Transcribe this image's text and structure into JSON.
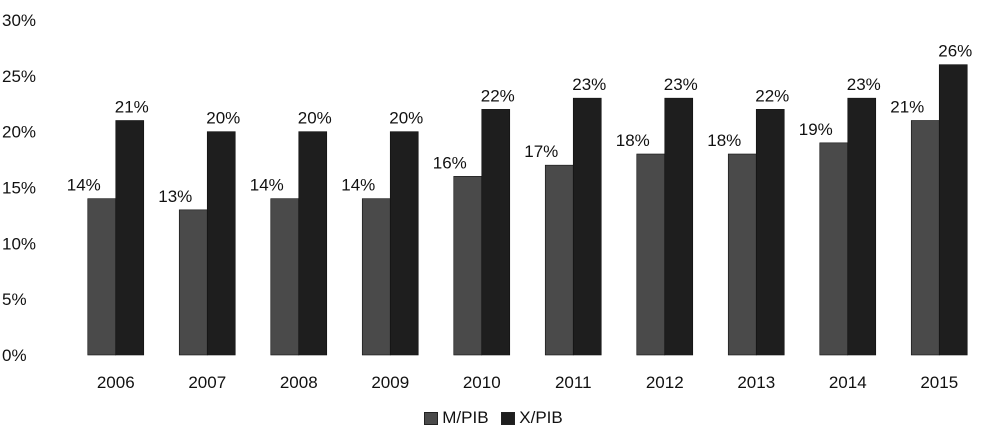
{
  "chart_data": {
    "type": "bar",
    "categories": [
      "2006",
      "2007",
      "2008",
      "2009",
      "2010",
      "2011",
      "2012",
      "2013",
      "2014",
      "2015"
    ],
    "series": [
      {
        "name": "M/PIB",
        "values": [
          14,
          13,
          14,
          14,
          16,
          17,
          18,
          18,
          19,
          21
        ],
        "labels": [
          "14%",
          "13%",
          "14%",
          "14%",
          "16%",
          "17%",
          "18%",
          "18%",
          "19%",
          "21%"
        ],
        "color": "#4a4a4a"
      },
      {
        "name": "X/PIB",
        "values": [
          21,
          20,
          20,
          20,
          22,
          23,
          23,
          22,
          23,
          26
        ],
        "labels": [
          "21%",
          "20%",
          "20%",
          "20%",
          "22%",
          "23%",
          "23%",
          "22%",
          "23%",
          "26%"
        ],
        "color": "#1e1e1e"
      }
    ],
    "ylim": [
      0,
      30
    ],
    "yticks": [
      "0%",
      "5%",
      "10%",
      "15%",
      "20%",
      "25%",
      "30%"
    ],
    "ytick_values": [
      0,
      5,
      10,
      15,
      20,
      25,
      30
    ],
    "grid": false,
    "legend_position": "bottom-center",
    "title": "",
    "xlabel": "",
    "ylabel": ""
  }
}
